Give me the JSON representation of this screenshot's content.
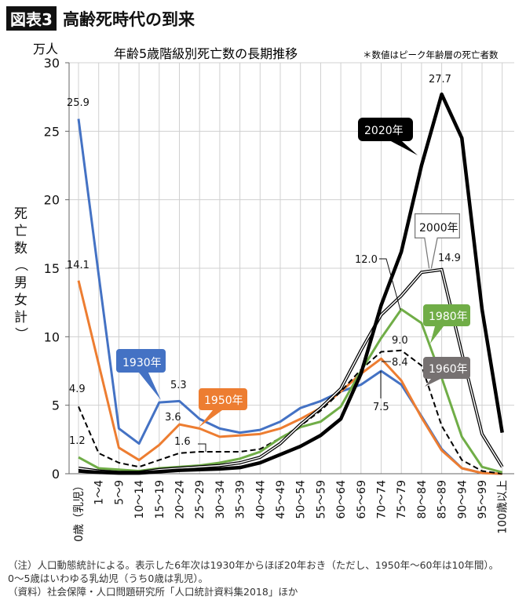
{
  "figure": {
    "tag": "図表3",
    "title": "高齢死時代の到来"
  },
  "notes": [
    "（注）人口動態統計による。表示した6年次は1930年からほぼ20年おき（ただし、1950年〜60年は10年間）。",
    "0〜5歳はいわゆる乳幼児（うち0歳は乳児）。",
    "（資料）社会保障・人口問題研究所「人口統計資料集2018」ほか"
  ],
  "chart_data": {
    "type": "line",
    "title": "年齢5歳階級別死亡数の長期推移",
    "subtitle": "＊数値はピーク年齢層の死亡者数",
    "unit": "万人",
    "ylabel": "死亡数（男女計）",
    "ylim": [
      0,
      30
    ],
    "yticks": [
      "0",
      "5",
      "10",
      "15",
      "20",
      "25",
      "30"
    ],
    "grid": true,
    "categories": [
      "0歳（乳児）",
      "1〜4",
      "5〜9",
      "10〜14",
      "15〜19",
      "20〜24",
      "25〜29",
      "30〜34",
      "35〜39",
      "40〜44",
      "45〜49",
      "50〜54",
      "55〜59",
      "60〜64",
      "65〜69",
      "70〜74",
      "75〜79",
      "80〜84",
      "85〜89",
      "90〜94",
      "95〜99",
      "100歳以上"
    ],
    "series": [
      {
        "name": "1930年",
        "color": "#4472c4",
        "style": "solid",
        "values": [
          25.9,
          14.5,
          3.3,
          2.2,
          5.2,
          5.3,
          4.0,
          3.3,
          3.0,
          3.2,
          3.8,
          4.8,
          5.3,
          6.0,
          6.5,
          7.5,
          6.5,
          4.2,
          1.8,
          0.4,
          0.05,
          0.0
        ]
      },
      {
        "name": "1950年",
        "color": "#ed7d31",
        "style": "solid",
        "values": [
          14.1,
          8.0,
          1.9,
          1.0,
          2.1,
          3.6,
          3.3,
          2.7,
          2.8,
          2.9,
          3.3,
          4.0,
          4.8,
          6.0,
          7.3,
          8.4,
          6.8,
          4.1,
          1.7,
          0.4,
          0.05,
          0.0
        ]
      },
      {
        "name": "1960年",
        "color": "#000000",
        "style": "dashed",
        "values": [
          4.9,
          1.5,
          0.8,
          0.5,
          1.0,
          1.5,
          1.6,
          1.6,
          1.6,
          1.8,
          2.6,
          3.5,
          4.6,
          6.0,
          7.6,
          8.9,
          9.0,
          7.9,
          3.5,
          1.0,
          0.2,
          0.0
        ]
      },
      {
        "name": "1980年",
        "color": "#70ad47",
        "style": "solid",
        "values": [
          1.2,
          0.4,
          0.3,
          0.2,
          0.4,
          0.5,
          0.6,
          0.8,
          1.1,
          1.6,
          2.6,
          3.4,
          3.8,
          4.9,
          7.5,
          9.9,
          12.0,
          11.0,
          7.0,
          2.7,
          0.5,
          0.1
        ]
      },
      {
        "name": "2000年",
        "color": "#000000",
        "style": "double",
        "values": [
          0.4,
          0.2,
          0.1,
          0.1,
          0.3,
          0.4,
          0.5,
          0.6,
          0.8,
          1.2,
          2.2,
          3.6,
          4.8,
          6.2,
          9.0,
          11.6,
          13.0,
          14.7,
          14.9,
          8.8,
          2.9,
          0.5
        ]
      },
      {
        "name": "2020年",
        "color": "#000000",
        "style": "thick",
        "values": [
          0.2,
          0.1,
          0.05,
          0.05,
          0.15,
          0.25,
          0.3,
          0.35,
          0.45,
          0.8,
          1.4,
          2.0,
          2.8,
          4.0,
          7.3,
          12.3,
          16.2,
          22.5,
          27.7,
          24.5,
          12.0,
          3.0
        ]
      }
    ],
    "data_labels": [
      "25.9",
      "14.1",
      "4.9",
      "1.2",
      "5.3",
      "3.6",
      "1.6",
      "27.7",
      "12.0",
      "14.9",
      "9.0",
      "8.4",
      "7.5"
    ],
    "legend": "callouts"
  }
}
